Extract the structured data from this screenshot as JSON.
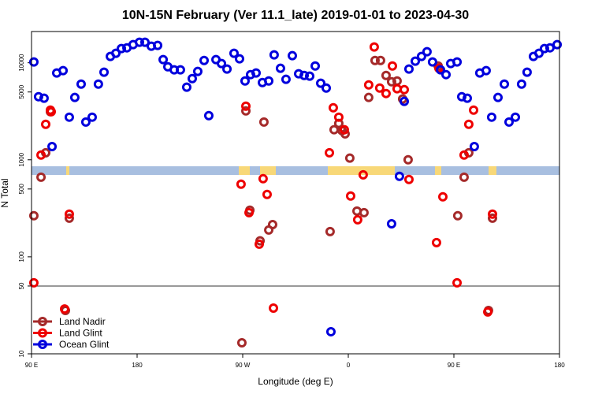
{
  "chart_data": {
    "type": "scatter",
    "title": "10N-15N February (Ver 11.1_late)   2019-01-01 to 2023-04-30",
    "x_label": "Longitude (deg E)",
    "y_label": "N Total",
    "xlim": [
      90,
      540
    ],
    "xticks": [
      {
        "value": 90,
        "label": "90 E"
      },
      {
        "value": 180,
        "label": "180"
      },
      {
        "value": 270,
        "label": "90 W"
      },
      {
        "value": 360,
        "label": "0"
      },
      {
        "value": 450,
        "label": "90 E"
      },
      {
        "value": 540,
        "label": "180"
      }
    ],
    "ylim": [
      10,
      21000
    ],
    "yscale": "log",
    "yticks": [
      10,
      50,
      100,
      500,
      1000,
      5000,
      10000
    ],
    "hline": 50,
    "legend": "lower left",
    "series": [
      {
        "name": "Land Nadir",
        "color": "#a52a2a",
        "x": [
          92.0,
          98.1,
          102.1,
          106.1,
          118.9,
          122.2,
          269.3,
          272.7,
          276.1,
          284.8,
          288.1,
          292.2,
          295.5,
          344.5,
          347.9,
          351.9,
          354.6,
          357.3,
          361.3,
          367.4,
          373.4,
          377.4,
          382.8,
          387.5,
          392.2,
          396.9,
          401.6,
          406.3,
          411.0,
          436.6,
          453.3,
          458.7,
          462.7,
          479.5,
          482.9
        ],
        "values": [
          265,
          662,
          1180,
          3130,
          28,
          250,
          13,
          3190,
          302,
          146,
          2450,
          189,
          215,
          182,
          2040,
          2370,
          2000,
          1850,
          1040,
          296,
          285,
          4390,
          10570,
          10570,
          7410,
          6380,
          6500,
          4230,
          1000,
          9270,
          265,
          662,
          1180,
          28,
          250
        ]
      },
      {
        "name": "Land Glint",
        "color": "#ee0000",
        "x": [
          92.0,
          98.1,
          102.1,
          106.1,
          106.8,
          118.2,
          122.2,
          268.6,
          272.7,
          275.4,
          284.1,
          287.4,
          290.8,
          296.2,
          343.9,
          347.2,
          351.9,
          356.6,
          362.0,
          368.0,
          372.7,
          377.4,
          382.1,
          386.8,
          392.2,
          397.6,
          401.6,
          407.7,
          411.7,
          435.2,
          437.2,
          440.6,
          452.7,
          458.7,
          462.7,
          466.8,
          478.9,
          482.9
        ],
        "values": [
          54,
          1120,
          2320,
          3250,
          3130,
          29,
          275,
          560,
          3570,
          285,
          135,
          638,
          439,
          29.6,
          1180,
          3440,
          2750,
          2040,
          423,
          241,
          700,
          5920,
          14550,
          5490,
          4820,
          9270,
          5400,
          5290,
          627,
          140,
          8770,
          415,
          54,
          1120,
          2320,
          3250,
          27,
          275
        ]
      },
      {
        "name": "Ocean Glint",
        "color": "#0000dd",
        "x": [
          92.0,
          96.0,
          100.7,
          107.5,
          111.5,
          116.9,
          122.2,
          126.9,
          132.3,
          136.3,
          141.7,
          147.0,
          151.8,
          157.2,
          161.9,
          166.6,
          171.3,
          176.6,
          182.0,
          186.7,
          192.1,
          197.5,
          202.2,
          206.2,
          211.6,
          216.9,
          222.3,
          227.0,
          231.7,
          237.1,
          241.1,
          247.2,
          251.9,
          256.6,
          262.6,
          267.3,
          272.0,
          276.7,
          281.4,
          286.8,
          292.2,
          296.8,
          302.2,
          306.9,
          312.3,
          317.7,
          322.4,
          327.1,
          331.8,
          336.5,
          341.2,
          345.2,
          403.6,
          396.9,
          407.7,
          411.7,
          417.1,
          422.4,
          427.1,
          431.8,
          438.6,
          443.3,
          447.3,
          452.7,
          456.7,
          461.4,
          467.4,
          472.1,
          477.5,
          482.2,
          487.6,
          493.0,
          497.0,
          502.4,
          507.7,
          512.4,
          517.8,
          522.5,
          527.2,
          531.9,
          538.0
        ],
        "values": [
          10190,
          4470,
          4310,
          1370,
          7840,
          8300,
          2750,
          4390,
          6030,
          2450,
          2750,
          6030,
          7990,
          11620,
          12530,
          14000,
          14260,
          15380,
          16260,
          16260,
          14820,
          15100,
          10790,
          9100,
          8450,
          8450,
          5600,
          6870,
          8140,
          10570,
          2850,
          10790,
          9820,
          8610,
          12530,
          10990,
          6500,
          7550,
          7840,
          6260,
          6500,
          12060,
          8770,
          6750,
          11830,
          7700,
          7410,
          7280,
          9270,
          6150,
          5490,
          16.9,
          675,
          219,
          4000,
          8610,
          10380,
          11620,
          13000,
          10190,
          8450,
          7550,
          9820,
          10190,
          4470,
          4310,
          1370,
          7840,
          8300,
          2750,
          4390,
          6030,
          2450,
          2750,
          6030,
          7990,
          11620,
          12530,
          14000,
          14260,
          15380
        ]
      }
    ]
  }
}
